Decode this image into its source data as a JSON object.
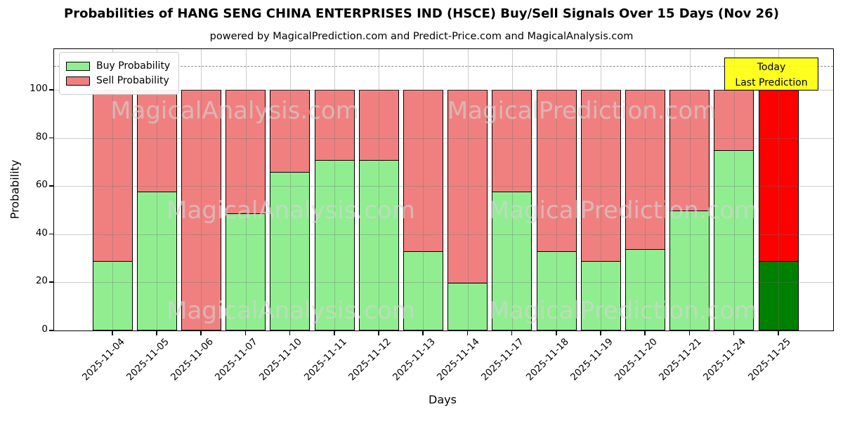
{
  "header": {
    "title": "Probabilities of HANG SENG CHINA ENTERPRISES IND (HSCE) Buy/Sell Signals Over 15 Days (Nov 26)",
    "subtitle": "powered by MagicalPrediction.com and Predict-Price.com and MagicalAnalysis.com"
  },
  "legend": {
    "items": [
      {
        "label": "Buy Probability",
        "color": "#90EE90"
      },
      {
        "label": "Sell Probability",
        "color": "#F08080"
      }
    ]
  },
  "annotation": {
    "line1": "Today",
    "line2": "Last Prediction",
    "bg_color": "#FFFF00"
  },
  "watermarks": {
    "left": "MagicalAnalysis.com",
    "right": "MagicalPrediction.com"
  },
  "chart_data": {
    "type": "bar",
    "stacked": true,
    "title": "Probabilities of HANG SENG CHINA ENTERPRISES IND (HSCE) Buy/Sell Signals Over 15 Days (Nov 26)",
    "categories": [
      "2025-11-04",
      "2025-11-05",
      "2025-11-06",
      "2025-11-07",
      "2025-11-10",
      "2025-11-11",
      "2025-11-12",
      "2025-11-13",
      "2025-11-14",
      "2025-11-17",
      "2025-11-18",
      "2025-11-19",
      "2025-11-20",
      "2025-11-21",
      "2025-11-24",
      "2025-11-25"
    ],
    "series": [
      {
        "name": "Buy Probability",
        "color": "#90EE90",
        "today_color": "#008000",
        "values": [
          29,
          58,
          0,
          49,
          66,
          71,
          71,
          33,
          20,
          58,
          33,
          29,
          34,
          50,
          75,
          29
        ]
      },
      {
        "name": "Sell Probability",
        "color": "#F08080",
        "today_color": "#FF0000",
        "values": [
          71,
          42,
          100,
          51,
          34,
          29,
          29,
          67,
          80,
          42,
          67,
          71,
          66,
          50,
          25,
          71
        ]
      }
    ],
    "xlabel": "Days",
    "ylabel": "Probability",
    "ylim": [
      0,
      117
    ],
    "yticks": [
      0,
      20,
      40,
      60,
      80,
      100
    ],
    "grid": true,
    "legend_position": "upper left",
    "dashed_line_y": 110,
    "today_index": 15
  }
}
